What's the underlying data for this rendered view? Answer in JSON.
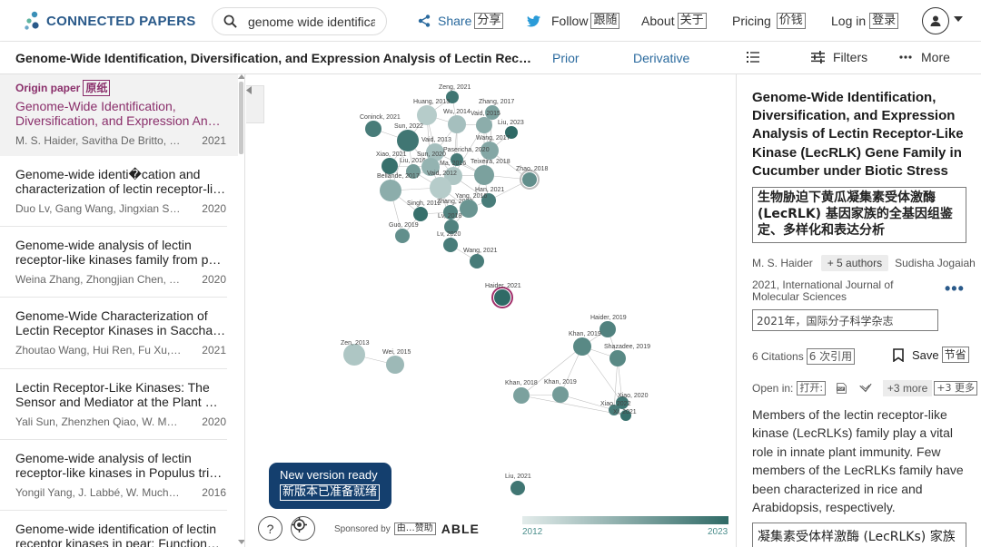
{
  "header": {
    "logo_text": "CONNECTED PAPERS",
    "search": {
      "value": "genome wide identifica",
      "placeholder": ""
    },
    "nav": {
      "share": {
        "label": "Share",
        "zh": "分享"
      },
      "follow": {
        "label": "Follow",
        "zh": "跟随"
      },
      "about": {
        "label": "About",
        "zh": "关于"
      },
      "pricing": {
        "label": "Pricing",
        "zh": "价钱"
      },
      "login": {
        "label": "Log in",
        "zh": "登录"
      }
    },
    "accent_color": "#2a5a8a"
  },
  "subbar": {
    "title": "Genome-Wide Identification, Diversification, and Expression Analysis of Lectin Receptor-Like Kinase (LecRLK) Gene Family in Cucumber under Biotic Stress",
    "tabs": {
      "prior": "Prior",
      "derivative": "Derivative"
    },
    "filters": "Filters",
    "more": "More"
  },
  "list": {
    "origin_label": "Origin paper",
    "origin_label_zh": "原纸",
    "items": [
      {
        "title1": "Genome-Wide Identification,",
        "title2": "Diversification, and Expression Analysis of Lectin Receptor-Like Kinase",
        "authors": "M. S. Haider, Savitha De Britto, G. Jogaiah",
        "year": "2021"
      },
      {
        "title1": "Genome-wide identi�cation and",
        "title2": "characterization of lectin receptor-like kinases",
        "authors": "Duo Lv, Gang Wang, Jingxian Sun, Lin-Rong",
        "year": "2020"
      },
      {
        "title1": "Genome-wide analysis of lectin",
        "title2": "receptor-like kinases family from potato",
        "authors": "Weina Zhang, Zhongjian Chen, Yichen Kang",
        "year": "2020"
      },
      {
        "title1": "Genome-Wide Characterization of",
        "title2": "Lectin Receptor Kinases in Saccharum spontaneum",
        "authors": "Zhoutao Wang, Hui Ren, Fu Xu, Guilong Lu",
        "year": "2021"
      },
      {
        "title1": "Lectin Receptor-Like Kinases: The",
        "title2": "Sensor and Mediator at the Plant Cell Surface",
        "authors": "Yali Sun, Zhenzhen Qiao, W. Muchero, J. Chen",
        "year": "2020"
      },
      {
        "title1": "Genome-wide analysis of lectin",
        "title2": "receptor-like kinases in Populus trichocarpa",
        "authors": "Yongil Yang, J. Labbé, W. Muchero, X. Yang",
        "year": "2016"
      },
      {
        "title1": "Genome-wide identification of lectin",
        "title2": "receptor kinases in pear: Functional characterization",
        "authors": "",
        "year": ""
      }
    ]
  },
  "graph": {
    "node_labels": [
      "Zeng, 2021",
      "Huang, 2013",
      "Zhang, 2017",
      "Wu, 2014",
      "Coninck, 2021",
      "Vaid, 2015",
      "Liu, 2023",
      "Sun, 2022",
      "Vaid, 2013",
      "Wang, 2017",
      "Pasericha, 2020",
      "Xiao, 2021",
      "Liu, 2016",
      "Sun, 2020",
      "Ma, 2016",
      "Teixeira, 2018",
      "Zhao, 2018",
      "Bellande, 2017",
      "Vaid, 2012",
      "Han, 2021",
      "Singh, 2012",
      "Zhang, 2020",
      "Yang, 2016",
      "Lv, 2018",
      "Guo, 2019",
      "Lv, 2020",
      "Wang, 2021",
      "Haider, 2021",
      "Haider, 2019",
      "Khan, 2019",
      "Zen, 2013",
      "Wei, 2015",
      "Shazadee, 2019",
      "Khan, 2018",
      "Khan, 2019",
      "Xiao, 2020",
      "Xiao, 2022",
      "Xi, 2021",
      "Liu, 2021"
    ],
    "new_version": {
      "label": "New version ready",
      "zh": "新版本已准备就绪"
    },
    "sponsored_by": "Sponsored by",
    "sponsored_zh": "由…赞助",
    "sponsor_name": "ABLE",
    "year_start": "2012",
    "year_end": "2023"
  },
  "detail": {
    "title": "Genome-Wide Identification, Diversification, and Expression Analysis of Lectin Receptor-Like Kinase (LecRLK) Gene Family in Cucumber under Biotic Stress",
    "title_zh": "生物胁迫下黄瓜凝集素受体激酶 (LecRLK) 基因家族的全基因组鉴定、多样化和表达分析",
    "first_author": "M. S. Haider",
    "more_authors": "+ 5 authors",
    "last_author": "Sudisha Jogaiah",
    "journal": "2021, International Journal of Molecular Sciences",
    "journal_zh": "2021年，国际分子科学杂志",
    "citations": "6 Citations",
    "citations_zh": "6 次引用",
    "save": "Save",
    "save_zh": "节省",
    "open_in": "Open in:",
    "open_in_zh": "打开:",
    "plus_more": "+3 more",
    "plus_more_zh": "+3 更多",
    "abstract": "Members of the lectin receptor-like kinase (LecRLKs) family play a vital role in innate plant immunity. Few members of the LecRLKs family have been characterized in rice and Arabidopsis, respectively.",
    "abstract_zh": "凝集素受体样激酶 (LecRLKs) 家族的成员在植物先天免疫中发挥着重要作用。"
  }
}
